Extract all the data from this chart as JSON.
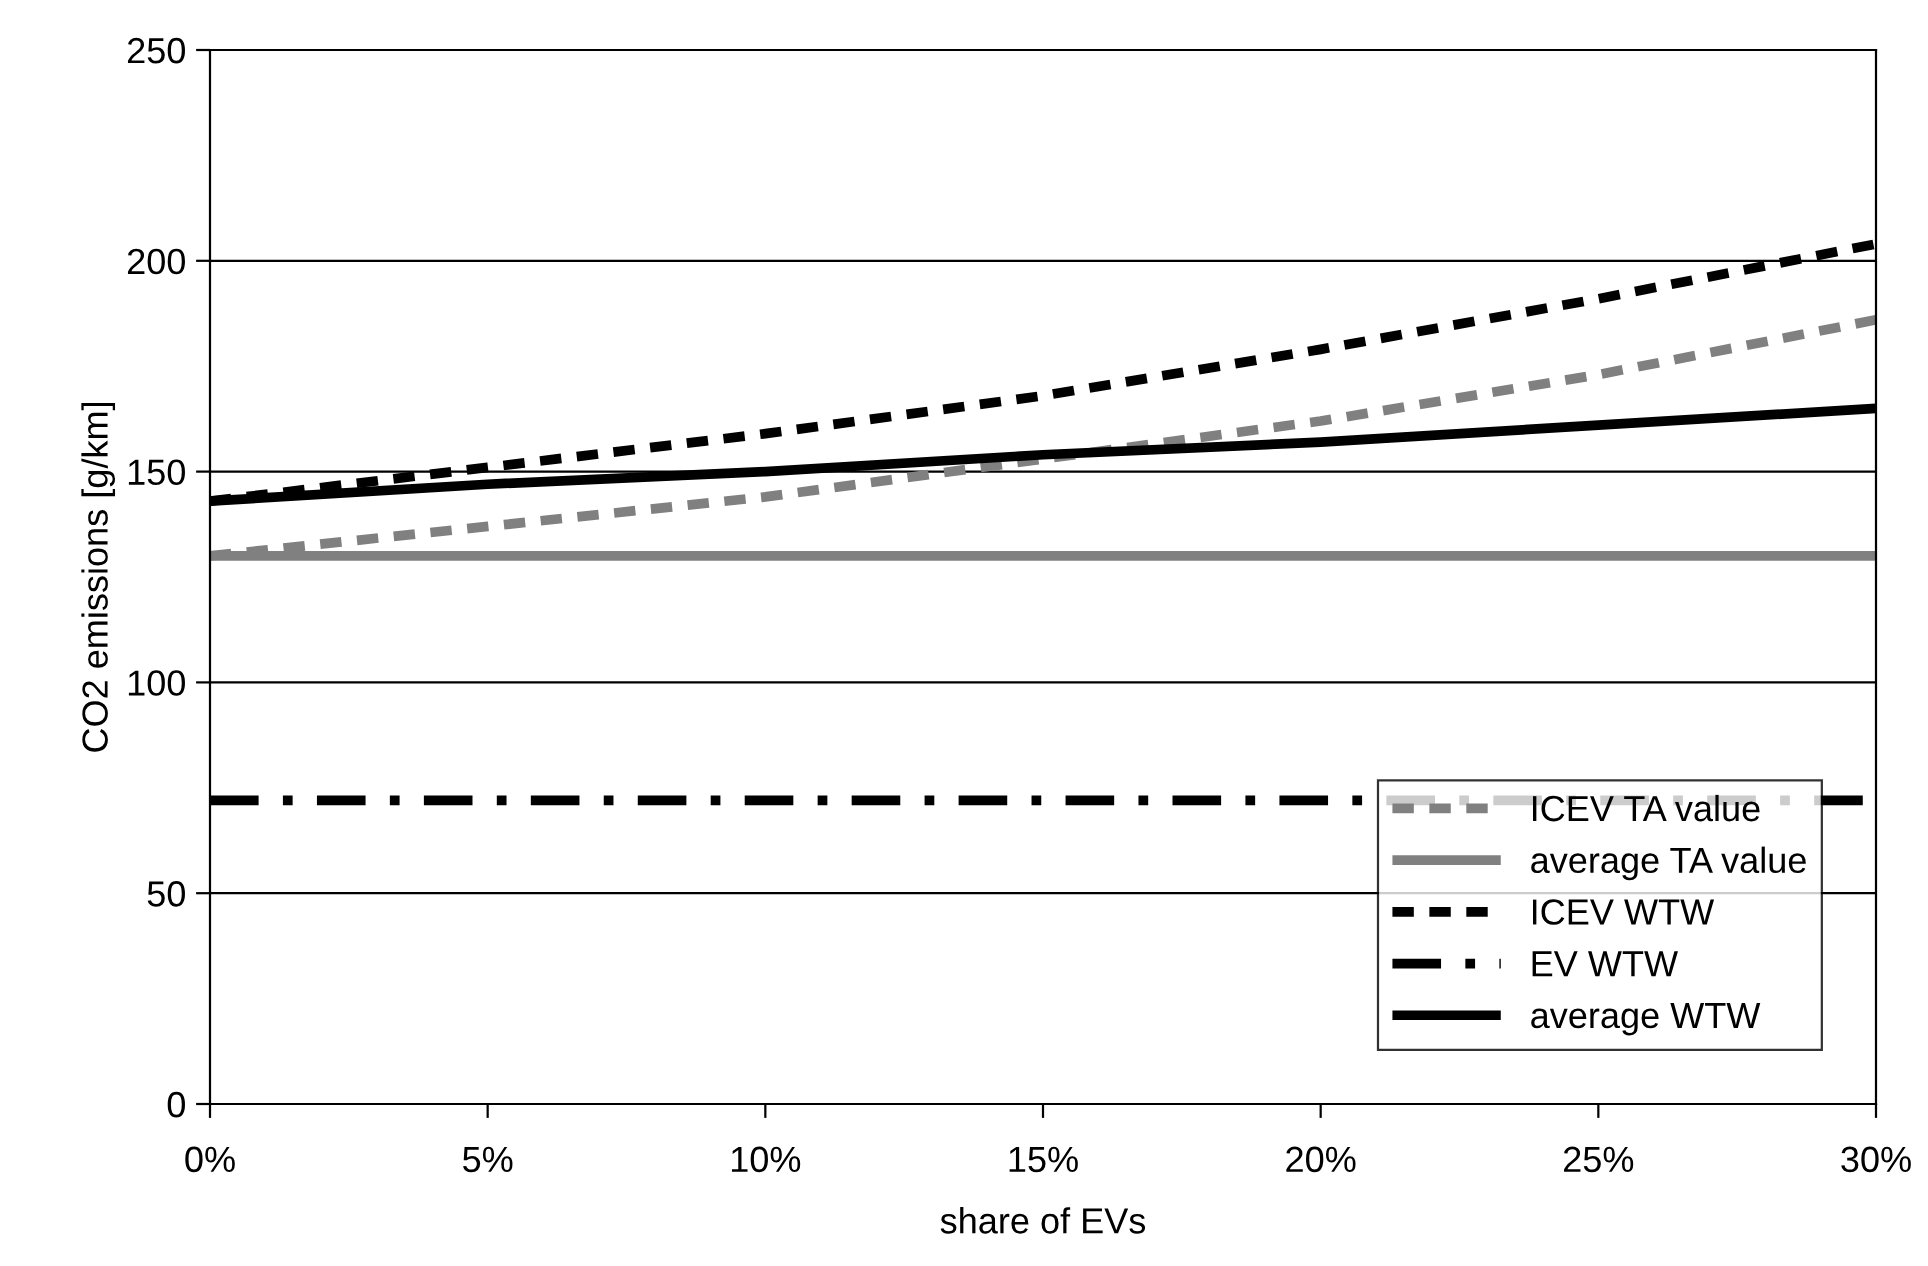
{
  "chart_data": {
    "type": "line",
    "xlabel": "share of EVs",
    "ylabel": "CO2 emissions [g/km]",
    "x": [
      0,
      5,
      10,
      15,
      20,
      25,
      30
    ],
    "series": [
      {
        "name": "ICEV TA value",
        "color": "#808080",
        "line_style": "dashed",
        "values": [
          130,
          137,
          144,
          153,
          162,
          173,
          186
        ]
      },
      {
        "name": "average TA value",
        "color": "#808080",
        "line_style": "solid",
        "values": [
          130,
          130,
          130,
          130,
          130,
          130,
          130
        ]
      },
      {
        "name": "ICEV WTW",
        "color": "#000000",
        "line_style": "dashed",
        "values": [
          143,
          151,
          159,
          168,
          179,
          191,
          204
        ]
      },
      {
        "name": "EV WTW",
        "color": "#000000",
        "line_style": "dashdot",
        "x": [
          0,
          30
        ],
        "values": [
          72,
          72
        ]
      },
      {
        "name": "average WTW",
        "color": "#000000",
        "line_style": "solid",
        "values": [
          143,
          147,
          150,
          154,
          157,
          161,
          165
        ]
      }
    ],
    "xlim": [
      0,
      30
    ],
    "xticks": [
      {
        "value": 0,
        "label": "0%"
      },
      {
        "value": 5,
        "label": "5%"
      },
      {
        "value": 10,
        "label": "10%"
      },
      {
        "value": 15,
        "label": "15%"
      },
      {
        "value": 20,
        "label": "20%"
      },
      {
        "value": 25,
        "label": "25%"
      },
      {
        "value": 30,
        "label": "30%"
      }
    ],
    "ylim": [
      0,
      250
    ],
    "yticks": [
      0,
      50,
      100,
      150,
      200,
      250
    ],
    "grid": "y",
    "legend": "bottom right",
    "marker": "none"
  }
}
